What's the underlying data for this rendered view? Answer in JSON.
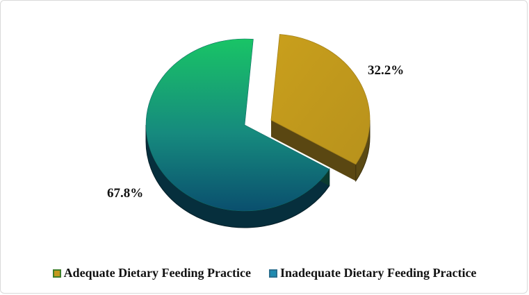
{
  "chart_data": {
    "type": "pie",
    "title": "",
    "categories": [
      "Adequate Dietary Feeding Practice",
      "Inadequate Dietary Feeding Practice"
    ],
    "values": [
      32.2,
      67.8
    ],
    "value_labels": [
      "32.2%",
      "67.8%"
    ],
    "legend_position": "bottom",
    "exploded": "Adequate Dietary Feeding Practice",
    "style": "3d",
    "colors": {
      "Adequate Dietary Feeding Practice": "#c49a1e",
      "Inadequate Dietary Feeding Practice": "#1aa878"
    }
  },
  "legend": {
    "items": [
      {
        "label": "Adequate Dietary Feeding Practice",
        "color": "#c49a1e",
        "border": "#3f7f2a"
      },
      {
        "label": "Inadequate Dietary Feeding Practice",
        "color": "#1f8bb0",
        "border": "#2a6f8f"
      }
    ]
  }
}
